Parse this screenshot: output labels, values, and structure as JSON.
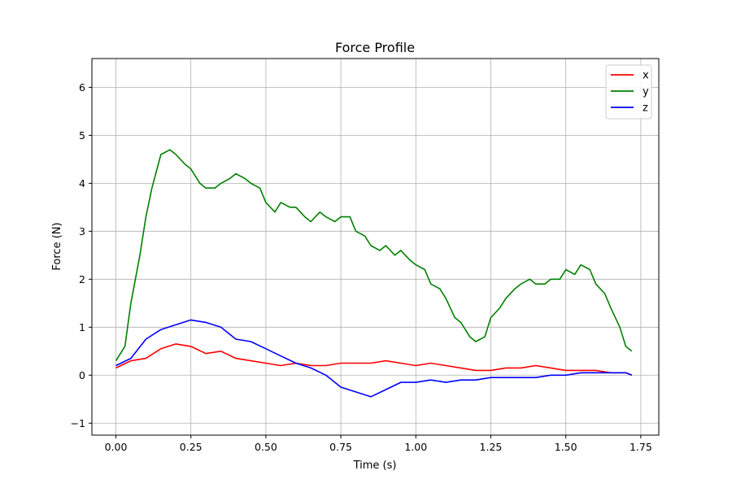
{
  "chart_data": {
    "type": "line",
    "title": "Force Profile",
    "xlabel": "Time (s)",
    "ylabel": "Force (N)",
    "xlim": [
      -0.08,
      1.81
    ],
    "ylim": [
      -1.25,
      6.6
    ],
    "xticks": [
      0.0,
      0.25,
      0.5,
      0.75,
      1.0,
      1.25,
      1.5,
      1.75
    ],
    "xtick_labels": [
      "0.00",
      "0.25",
      "0.50",
      "0.75",
      "1.00",
      "1.25",
      "1.50",
      "1.75"
    ],
    "yticks": [
      -1,
      0,
      1,
      2,
      3,
      4,
      5,
      6
    ],
    "ytick_labels": [
      "−1",
      "0",
      "1",
      "2",
      "3",
      "4",
      "5",
      "6"
    ],
    "grid": true,
    "legend_position": "top-right",
    "series": [
      {
        "name": "x",
        "color": "#ff0000",
        "x": [
          0.0,
          0.05,
          0.1,
          0.15,
          0.2,
          0.25,
          0.3,
          0.35,
          0.4,
          0.45,
          0.5,
          0.55,
          0.6,
          0.65,
          0.7,
          0.75,
          0.8,
          0.85,
          0.9,
          0.95,
          1.0,
          1.05,
          1.1,
          1.15,
          1.2,
          1.25,
          1.3,
          1.35,
          1.4,
          1.45,
          1.5,
          1.55,
          1.6,
          1.65,
          1.7,
          1.72
        ],
        "y": [
          0.15,
          0.3,
          0.35,
          0.55,
          0.65,
          0.6,
          0.45,
          0.5,
          0.35,
          0.3,
          0.25,
          0.2,
          0.25,
          0.2,
          0.2,
          0.25,
          0.25,
          0.25,
          0.3,
          0.25,
          0.2,
          0.25,
          0.2,
          0.15,
          0.1,
          0.1,
          0.15,
          0.15,
          0.2,
          0.15,
          0.1,
          0.1,
          0.1,
          0.05,
          0.05,
          0.0
        ]
      },
      {
        "name": "y",
        "color": "#008000",
        "x": [
          0.0,
          0.03,
          0.05,
          0.08,
          0.1,
          0.12,
          0.15,
          0.18,
          0.2,
          0.23,
          0.25,
          0.28,
          0.3,
          0.33,
          0.35,
          0.38,
          0.4,
          0.43,
          0.45,
          0.48,
          0.5,
          0.53,
          0.55,
          0.58,
          0.6,
          0.63,
          0.65,
          0.68,
          0.7,
          0.73,
          0.75,
          0.78,
          0.8,
          0.83,
          0.85,
          0.88,
          0.9,
          0.93,
          0.95,
          0.98,
          1.0,
          1.03,
          1.05,
          1.08,
          1.1,
          1.13,
          1.15,
          1.18,
          1.2,
          1.23,
          1.25,
          1.28,
          1.3,
          1.33,
          1.35,
          1.38,
          1.4,
          1.43,
          1.45,
          1.48,
          1.5,
          1.53,
          1.55,
          1.58,
          1.6,
          1.63,
          1.65,
          1.68,
          1.7,
          1.72
        ],
        "y": [
          0.3,
          0.6,
          1.5,
          2.5,
          3.3,
          3.9,
          4.6,
          4.7,
          4.6,
          4.4,
          4.3,
          4.0,
          3.9,
          3.9,
          4.0,
          4.1,
          4.2,
          4.1,
          4.0,
          3.9,
          3.6,
          3.4,
          3.6,
          3.5,
          3.5,
          3.3,
          3.2,
          3.4,
          3.3,
          3.2,
          3.3,
          3.3,
          3.0,
          2.9,
          2.7,
          2.6,
          2.7,
          2.5,
          2.6,
          2.4,
          2.3,
          2.2,
          1.9,
          1.8,
          1.6,
          1.2,
          1.1,
          0.8,
          0.7,
          0.8,
          1.2,
          1.4,
          1.6,
          1.8,
          1.9,
          2.0,
          1.9,
          1.9,
          2.0,
          2.0,
          2.2,
          2.1,
          2.3,
          2.2,
          1.9,
          1.7,
          1.4,
          1.0,
          0.6,
          0.5
        ]
      },
      {
        "name": "z",
        "color": "#0000ff",
        "x": [
          0.0,
          0.05,
          0.1,
          0.15,
          0.2,
          0.25,
          0.3,
          0.35,
          0.4,
          0.45,
          0.5,
          0.55,
          0.6,
          0.65,
          0.7,
          0.75,
          0.8,
          0.85,
          0.9,
          0.95,
          1.0,
          1.05,
          1.1,
          1.15,
          1.2,
          1.25,
          1.3,
          1.35,
          1.4,
          1.45,
          1.5,
          1.55,
          1.6,
          1.65,
          1.7,
          1.72
        ],
        "y": [
          0.2,
          0.35,
          0.75,
          0.95,
          1.05,
          1.15,
          1.1,
          1.0,
          0.75,
          0.7,
          0.55,
          0.4,
          0.25,
          0.15,
          0.0,
          -0.25,
          -0.35,
          -0.45,
          -0.3,
          -0.15,
          -0.15,
          -0.1,
          -0.15,
          -0.1,
          -0.1,
          -0.05,
          -0.05,
          -0.05,
          -0.05,
          0.0,
          0.0,
          0.05,
          0.05,
          0.05,
          0.05,
          0.0
        ]
      }
    ]
  }
}
